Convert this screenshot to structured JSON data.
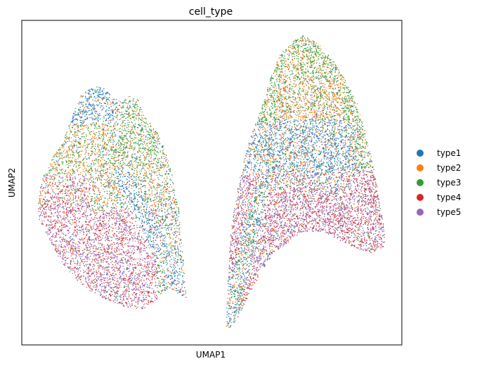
{
  "chart_data": {
    "type": "scatter",
    "title": "cell_type",
    "xlabel": "UMAP1",
    "ylabel": "UMAP2",
    "grid": false,
    "xticks": false,
    "yticks": false,
    "legend_placement": "right",
    "series": [
      {
        "name": "type1",
        "color": "#1f77b4"
      },
      {
        "name": "type2",
        "color": "#ff7f0e"
      },
      {
        "name": "type3",
        "color": "#2ca02c"
      },
      {
        "name": "type4",
        "color": "#d62728"
      },
      {
        "name": "type5",
        "color": "#9467bd"
      }
    ]
  }
}
